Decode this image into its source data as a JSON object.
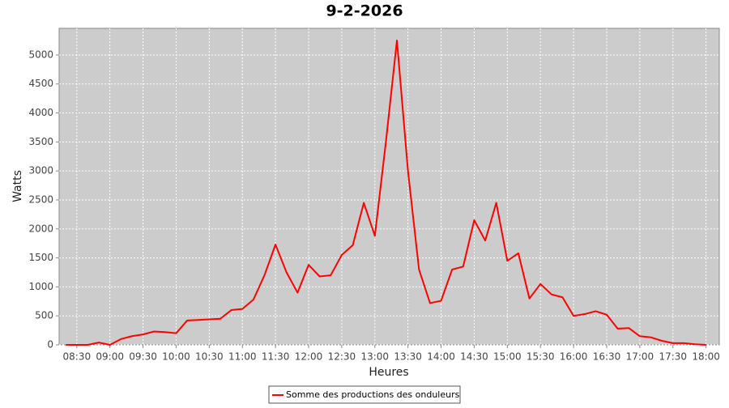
{
  "chart_data": {
    "type": "line",
    "title": "9-2-2026",
    "x_label": "Heures",
    "y_label": "Watts",
    "x": [
      "08:20",
      "08:30",
      "08:40",
      "08:50",
      "09:00",
      "09:10",
      "09:20",
      "09:30",
      "09:40",
      "09:50",
      "10:00",
      "10:10",
      "10:20",
      "10:30",
      "10:40",
      "10:50",
      "11:00",
      "11:10",
      "11:20",
      "11:30",
      "11:40",
      "11:50",
      "12:00",
      "12:10",
      "12:20",
      "12:30",
      "12:40",
      "12:50",
      "13:00",
      "13:10",
      "13:20",
      "13:30",
      "13:40",
      "13:50",
      "14:00",
      "14:10",
      "14:20",
      "14:30",
      "14:40",
      "14:50",
      "15:00",
      "15:10",
      "15:20",
      "15:30",
      "15:40",
      "15:50",
      "16:00",
      "16:10",
      "16:20",
      "16:30",
      "16:40",
      "16:50",
      "17:00",
      "17:10",
      "17:20",
      "17:30",
      "17:40",
      "17:50",
      "18:00"
    ],
    "series": [
      {
        "name": "Somme des productions des onduleurs",
        "color": "#ff0000",
        "values": [
          0,
          0,
          0,
          40,
          0,
          100,
          150,
          180,
          230,
          220,
          200,
          420,
          430,
          440,
          450,
          600,
          620,
          780,
          1200,
          1730,
          1250,
          900,
          1380,
          1180,
          1200,
          1550,
          1720,
          2450,
          1880,
          3500,
          5250,
          3000,
          1300,
          720,
          760,
          1300,
          1350,
          2150,
          1800,
          2450,
          1450,
          1580,
          800,
          1050,
          870,
          820,
          500,
          530,
          580,
          520,
          280,
          290,
          150,
          130,
          70,
          30,
          30,
          10,
          0
        ]
      }
    ],
    "xlim": [
      "08:14",
      "18:12"
    ],
    "xticks": [
      "08:30",
      "09:00",
      "09:30",
      "10:00",
      "10:30",
      "11:00",
      "11:30",
      "12:00",
      "12:30",
      "13:00",
      "13:30",
      "14:00",
      "14:30",
      "15:00",
      "15:30",
      "16:00",
      "16:30",
      "17:00",
      "17:30",
      "18:00"
    ],
    "ylim": [
      0,
      5460
    ],
    "yticks": [
      0,
      500,
      1000,
      1500,
      2000,
      2500,
      3000,
      3500,
      4000,
      4500,
      5000
    ],
    "grid": true
  }
}
